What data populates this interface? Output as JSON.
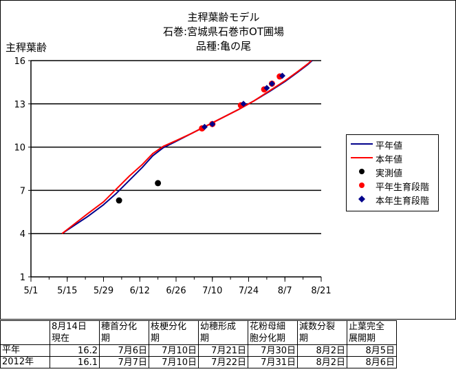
{
  "chart_data": {
    "type": "line",
    "title_lines": [
      "主稈葉齢モデル",
      "石巻:宮城県石巻市OT圃場",
      "品種:亀の尾"
    ],
    "ylabel": "主稈葉齢",
    "xlabel": "",
    "ylim": [
      1,
      16
    ],
    "yticks": [
      1,
      4,
      7,
      10,
      13,
      16
    ],
    "xlim": [
      0,
      112
    ],
    "xticks": [
      {
        "day": 0,
        "label": "5/1"
      },
      {
        "day": 14,
        "label": "5/15"
      },
      {
        "day": 28,
        "label": "5/29"
      },
      {
        "day": 42,
        "label": "6/12"
      },
      {
        "day": 56,
        "label": "6/26"
      },
      {
        "day": 70,
        "label": "7/10"
      },
      {
        "day": 84,
        "label": "7/24"
      },
      {
        "day": 98,
        "label": "8/7"
      },
      {
        "day": 112,
        "label": "8/21"
      }
    ],
    "grid": "horizontal",
    "legend_position": "right",
    "series": [
      {
        "name": "平年値",
        "kind": "line",
        "color": "#00008b",
        "points": [
          [
            12,
            4.0
          ],
          [
            17,
            4.6
          ],
          [
            22,
            5.2
          ],
          [
            28,
            6.0
          ],
          [
            33,
            6.8
          ],
          [
            38,
            7.7
          ],
          [
            43,
            8.6
          ],
          [
            47,
            9.4
          ],
          [
            51,
            9.95
          ],
          [
            56,
            10.4
          ],
          [
            62,
            10.95
          ],
          [
            68,
            11.5
          ],
          [
            74,
            12.05
          ],
          [
            80,
            12.6
          ],
          [
            86,
            13.2
          ],
          [
            92,
            13.85
          ],
          [
            98,
            14.55
          ],
          [
            103,
            15.2
          ],
          [
            107,
            15.75
          ],
          [
            108.5,
            16.0
          ]
        ]
      },
      {
        "name": "本年値",
        "kind": "line",
        "color": "#ff0000",
        "points": [
          [
            12,
            4.0
          ],
          [
            17,
            4.7
          ],
          [
            22,
            5.4
          ],
          [
            28,
            6.2
          ],
          [
            33,
            7.1
          ],
          [
            38,
            8.0
          ],
          [
            43,
            8.8
          ],
          [
            47,
            9.55
          ],
          [
            51,
            10.05
          ],
          [
            56,
            10.45
          ],
          [
            62,
            10.95
          ],
          [
            68,
            11.5
          ],
          [
            74,
            12.05
          ],
          [
            80,
            12.6
          ],
          [
            86,
            13.2
          ],
          [
            92,
            13.9
          ],
          [
            98,
            14.6
          ],
          [
            103,
            15.25
          ],
          [
            107,
            15.8
          ],
          [
            108.2,
            16.0
          ]
        ]
      },
      {
        "name": "実測値",
        "kind": "scatter",
        "color": "#000000",
        "marker": "circle",
        "points": [
          [
            34,
            6.3
          ],
          [
            49,
            7.5
          ]
        ]
      },
      {
        "name": "平年生育段階",
        "kind": "scatter",
        "color": "#ff0000",
        "marker": "circle",
        "points": [
          [
            66,
            11.3
          ],
          [
            70,
            11.6
          ],
          [
            81,
            12.9
          ],
          [
            90,
            14.0
          ],
          [
            93,
            14.4
          ],
          [
            96,
            14.9
          ]
        ]
      },
      {
        "name": "本年生育段階",
        "kind": "scatter",
        "color": "#00008b",
        "marker": "diamond",
        "points": [
          [
            67,
            11.4
          ],
          [
            70,
            11.6
          ],
          [
            82,
            13.0
          ],
          [
            91,
            14.1
          ],
          [
            93,
            14.4
          ],
          [
            97,
            14.95
          ]
        ]
      }
    ]
  },
  "table": {
    "headers": [
      [
        "",
        ""
      ],
      [
        "8月14日",
        "現在"
      ],
      [
        "穂首分化",
        "期"
      ],
      [
        "枝梗分化",
        "期"
      ],
      [
        "幼穂形成",
        "期"
      ],
      [
        "花粉母細",
        "胞分化期"
      ],
      [
        "減数分裂",
        "期"
      ],
      [
        "止葉完全",
        "展開期"
      ]
    ],
    "rows": [
      [
        "平年",
        "16.2",
        "7月6日",
        "7月10日",
        "7月21日",
        "7月30日",
        "8月2日",
        "8月5日"
      ],
      [
        "2012年",
        "16.1",
        "7月7日",
        "7月10日",
        "7月22日",
        "7月31日",
        "8月2日",
        "8月6日"
      ]
    ]
  }
}
